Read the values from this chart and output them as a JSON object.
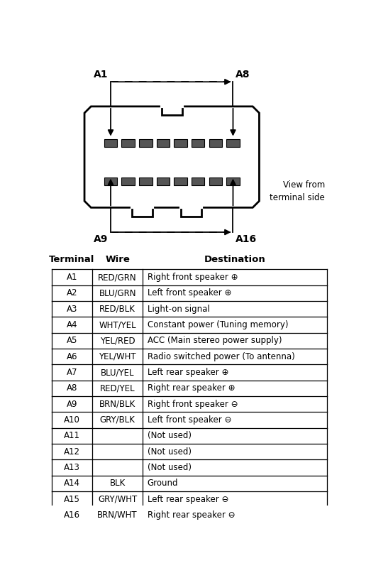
{
  "connector_label_A1": "A1",
  "connector_label_A8": "A8",
  "connector_label_A9": "A9",
  "connector_label_A16": "A16",
  "view_text": "View from\nterminal side",
  "table_headers": [
    "Terminal",
    "Wire",
    "Destination"
  ],
  "rows": [
    [
      "A1",
      "RED/GRN",
      "Right front speaker ⊕"
    ],
    [
      "A2",
      "BLU/GRN",
      "Left front speaker ⊕"
    ],
    [
      "A3",
      "RED/BLK",
      "Light-on signal"
    ],
    [
      "A4",
      "WHT/YEL",
      "Constant power (Tuning memory)"
    ],
    [
      "A5",
      "YEL/RED",
      "ACC (Main stereo power supply)"
    ],
    [
      "A6",
      "YEL/WHT",
      "Radio switched power (To antenna)"
    ],
    [
      "A7",
      "BLU/YEL",
      "Left rear speaker ⊕"
    ],
    [
      "A8",
      "RED/YEL",
      "Right rear speaker ⊕"
    ],
    [
      "A9",
      "BRN/BLK",
      "Right front speaker ⊖"
    ],
    [
      "A10",
      "GRY/BLK",
      "Left front speaker ⊖"
    ],
    [
      "A11",
      "",
      "(Not used)"
    ],
    [
      "A12",
      "",
      "(Not used)"
    ],
    [
      "A13",
      "",
      "(Not used)"
    ],
    [
      "A14",
      "BLK",
      "Ground"
    ],
    [
      "A15",
      "GRY/WHT",
      "Left rear speaker ⊖"
    ],
    [
      "A16",
      "BRN/WHT",
      "Right rear speaker ⊖"
    ]
  ],
  "bg_color": "#ffffff",
  "line_color": "#000000",
  "header_fontsize": 9.5,
  "cell_fontsize": 8.5
}
